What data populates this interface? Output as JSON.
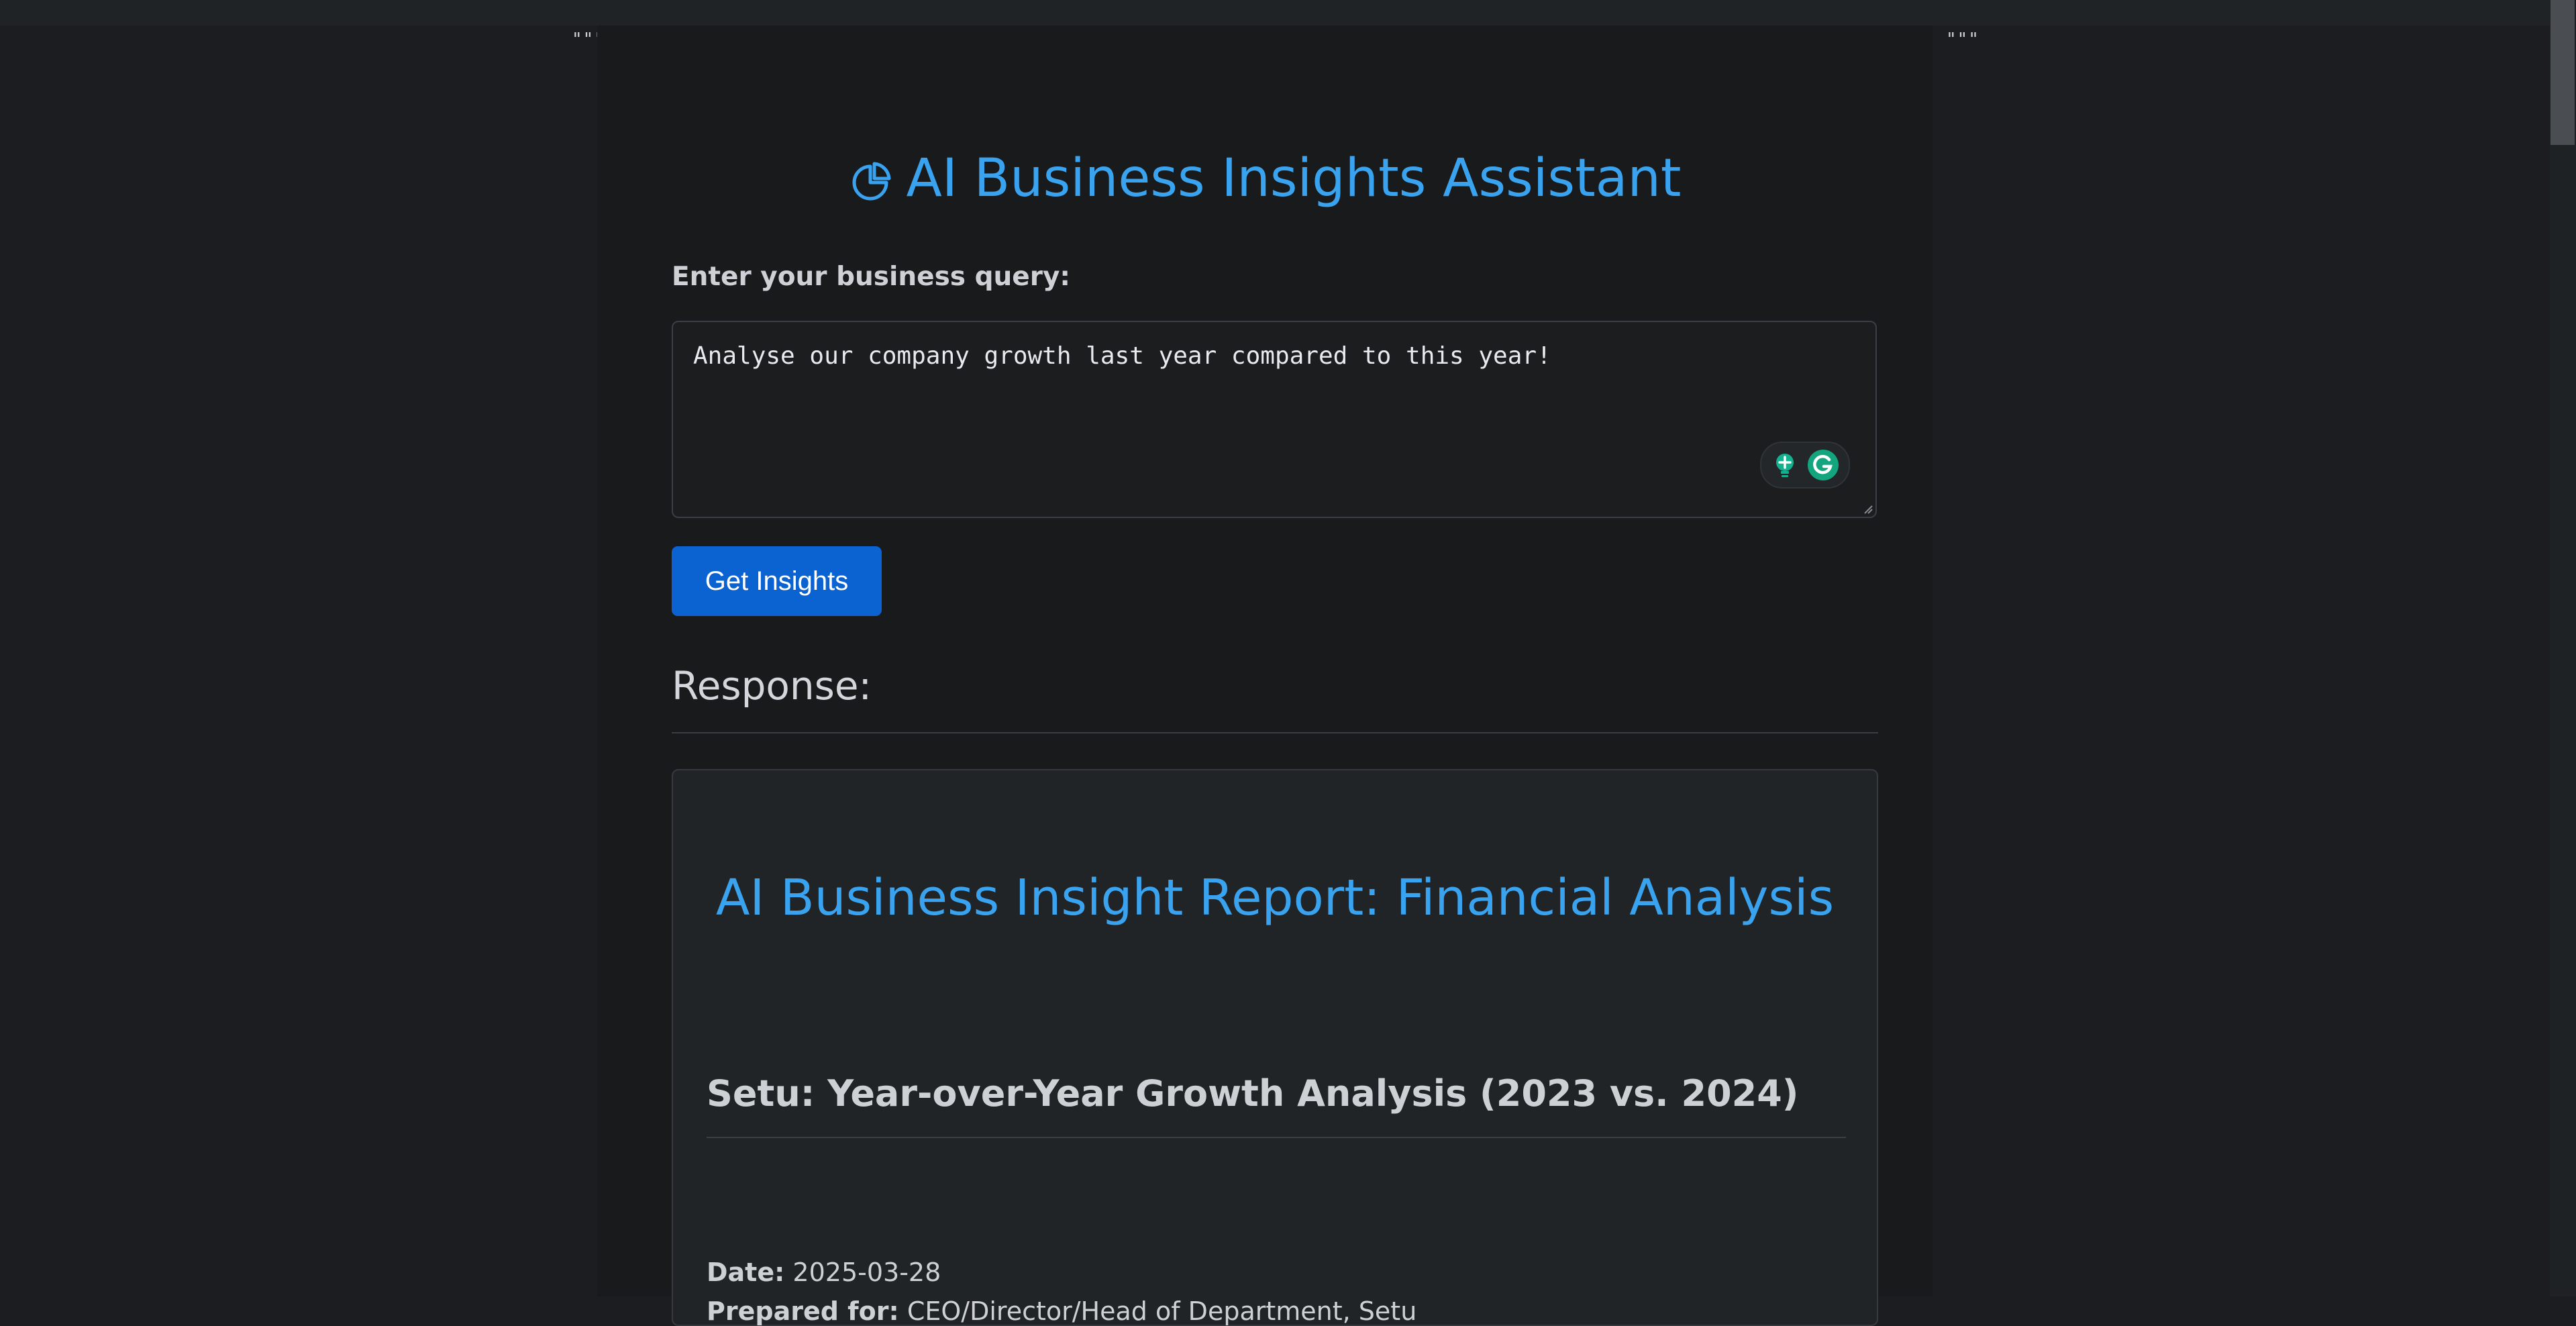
{
  "decoration": {
    "quote_left": "\"\"\"",
    "quote_right": "\"\"\""
  },
  "app": {
    "title": "AI Business Insights Assistant",
    "title_icon": "pie-chart-icon",
    "accent_color": "#3aa3f0"
  },
  "query": {
    "label": "Enter your business query:",
    "value": "Analyse our company growth last year compared to this year!"
  },
  "actions": {
    "get_insights_label": "Get Insights",
    "button_color": "#0a63d1"
  },
  "response": {
    "heading": "Response:",
    "report": {
      "title": "AI Business Insight Report: Financial Analysis",
      "section_title": "Setu: Year-over-Year Growth Analysis (2023 vs. 2024)",
      "date_label": "Date:",
      "date_value": "2025-03-28",
      "prepared_label": "Prepared for:",
      "prepared_value": "CEO/Director/Head of Department, Setu"
    }
  }
}
